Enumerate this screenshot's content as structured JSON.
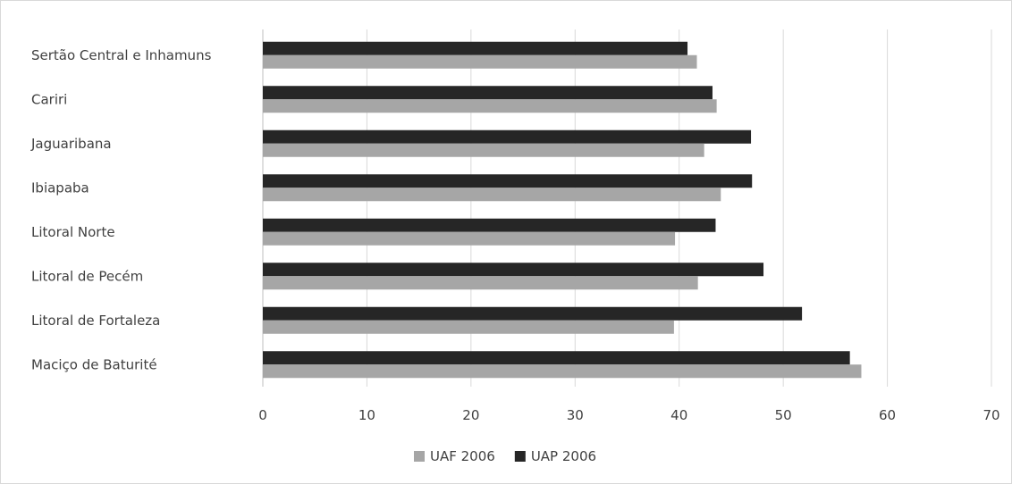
{
  "chart_data": {
    "type": "bar",
    "orientation": "horizontal",
    "categories": [
      "Sertão Central e Inhamuns",
      "Cariri",
      "Jaguaribana",
      "Ibiapaba",
      "Litoral Norte",
      "Litoral de Pecém",
      "Litoral de Fortaleza",
      "Maciço de Baturité"
    ],
    "series": [
      {
        "name": "UAP 2006",
        "color": "#262626",
        "values": [
          40.8,
          43.2,
          46.9,
          47.0,
          43.5,
          48.1,
          51.8,
          56.4
        ]
      },
      {
        "name": "UAF 2006",
        "color": "#a6a6a6",
        "values": [
          41.7,
          43.6,
          42.4,
          44.0,
          39.6,
          41.8,
          39.5,
          57.5
        ]
      }
    ],
    "xlim": [
      0,
      70
    ],
    "xticks": [
      0,
      10,
      20,
      30,
      40,
      50,
      60,
      70
    ],
    "grid": true,
    "legend": {
      "position": "bottom",
      "items": [
        {
          "name": "UAF 2006",
          "color": "#a6a6a6"
        },
        {
          "name": "UAP 2006",
          "color": "#262626"
        }
      ]
    }
  }
}
